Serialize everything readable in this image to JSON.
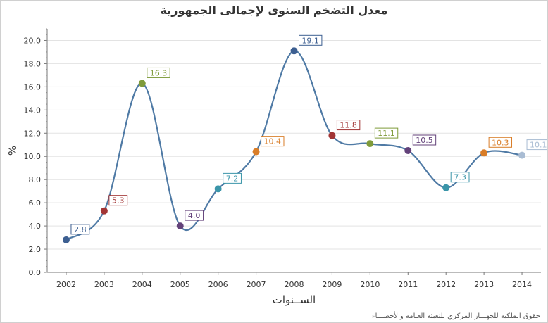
{
  "chart_data": {
    "type": "line",
    "title": "معدل التضخم  السنوى لإجمالى الجمهورية",
    "xlabel": "الســنوات",
    "ylabel": "%",
    "ylim": [
      0,
      21
    ],
    "yticks": [
      "0.0",
      "2.0",
      "4.0",
      "6.0",
      "8.0",
      "10.0",
      "12.0",
      "14.0",
      "16.0",
      "18.0",
      "20.0"
    ],
    "categories": [
      "2002",
      "2003",
      "2004",
      "2005",
      "2006",
      "2007",
      "2008",
      "2009",
      "2010",
      "2011",
      "2012",
      "2013",
      "2014"
    ],
    "series": [
      {
        "values": [
          2.8,
          5.3,
          16.3,
          4.0,
          7.2,
          10.4,
          19.1,
          11.8,
          11.1,
          10.5,
          7.3,
          10.3,
          10.1
        ],
        "labels": [
          "2.8",
          "5.3",
          "16.3",
          "4.0",
          "7.2",
          "10.4",
          "19.1",
          "11.8",
          "11.1",
          "10.5",
          "7.3",
          "10.3",
          "10.1"
        ]
      }
    ],
    "grid": true,
    "colors": {
      "line": "#4f7aa5",
      "points": [
        "#3d5f91",
        "#a23535",
        "#7f9b3a",
        "#63427a",
        "#3a95a9",
        "#d97d27",
        "#3d5f91",
        "#a23535",
        "#7f9b3a",
        "#63427a",
        "#3a95a9",
        "#d97d27",
        "#a9bcd3"
      ]
    }
  },
  "footer": "حقوق الملكية للجهـــاز المركزي للتعبئة العـامة والأحصـــاء"
}
